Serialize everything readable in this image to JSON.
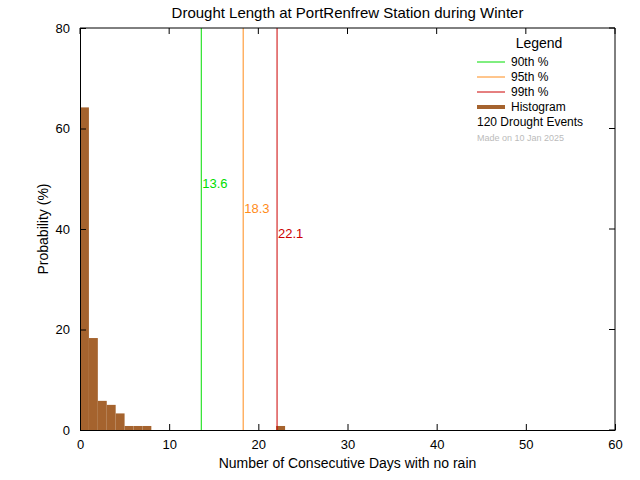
{
  "chart_data": {
    "type": "histogram",
    "title": "Drought Length at PortRenfrew Station during Winter",
    "x_label": "Number of Consecutive Days with no rain",
    "y_label": "Probability (%)",
    "bins": [
      0,
      1,
      2,
      3,
      4,
      5,
      6,
      7,
      8,
      9,
      10,
      11,
      12,
      13,
      14,
      15,
      16,
      17,
      18,
      19,
      20,
      21,
      22,
      23
    ],
    "series": [
      {
        "name": "Histogram",
        "color": "#a5632e",
        "values": [
          64.2,
          18.3,
          5.8,
          5.0,
          3.3,
          0.8,
          0.8,
          0.8,
          0,
          0,
          0,
          0,
          0,
          0,
          0,
          0,
          0,
          0,
          0,
          0,
          0,
          0,
          0.8
        ]
      }
    ],
    "lines": [
      {
        "name": "90th %",
        "value": 13.6,
        "color": "#00dd00"
      },
      {
        "name": "95th %",
        "value": 18.3,
        "color": "#ff8c1a"
      },
      {
        "name": "99th %",
        "value": 22.1,
        "color": "#cc0000"
      }
    ],
    "legend": "upper right",
    "legend_title": "Legend",
    "annotations": [
      "120 Drought Events",
      "Made on 10 Jan 2025"
    ],
    "xlim": [
      0,
      60
    ],
    "xticks": [
      0,
      10,
      20,
      30,
      40,
      50,
      60
    ],
    "ylim": [
      0,
      80
    ],
    "yticks": [
      0,
      20,
      40,
      60,
      80
    ]
  }
}
